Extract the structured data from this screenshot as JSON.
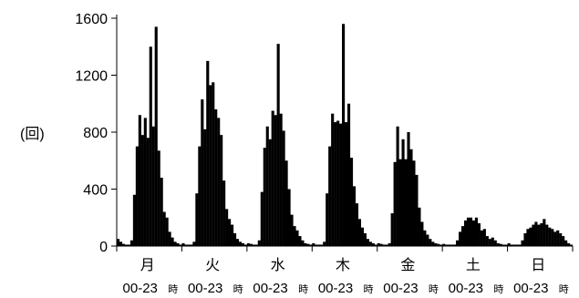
{
  "chart_data": {
    "type": "bar",
    "title": "",
    "xlabel": "",
    "ylabel": "(回)",
    "ylim": [
      0,
      1600
    ],
    "yticks": [
      "0",
      "400",
      "800",
      "1200",
      "1600"
    ],
    "grid": false,
    "legend": "none",
    "bar_color": "#000000",
    "categories": [
      "月",
      "火",
      "水",
      "木",
      "金",
      "土",
      "日"
    ],
    "hour_range_label": "00-23",
    "hour_unit_label": "時",
    "series": [
      {
        "values": [
          [
            50,
            30,
            15,
            10,
            10,
            40,
            360,
            700,
            920,
            780,
            900,
            760,
            1400,
            840,
            1540,
            670,
            480,
            240,
            200,
            100,
            60,
            30,
            20,
            10
          ],
          [
            20,
            10,
            10,
            10,
            30,
            370,
            700,
            1030,
            820,
            1300,
            1130,
            1150,
            960,
            900,
            780,
            460,
            260,
            190,
            150,
            90,
            50,
            30,
            20,
            10
          ],
          [
            20,
            15,
            10,
            10,
            40,
            380,
            690,
            840,
            750,
            950,
            920,
            1420,
            930,
            810,
            600,
            400,
            220,
            140,
            110,
            70,
            40,
            20,
            15,
            10
          ],
          [
            20,
            10,
            10,
            10,
            30,
            370,
            700,
            930,
            870,
            880,
            860,
            1560,
            870,
            1000,
            620,
            420,
            300,
            190,
            130,
            90,
            50,
            30,
            20,
            10
          ],
          [
            20,
            15,
            10,
            10,
            20,
            230,
            590,
            840,
            610,
            750,
            610,
            800,
            680,
            600,
            500,
            270,
            170,
            110,
            80,
            50,
            30,
            20,
            15,
            10
          ],
          [
            15,
            10,
            10,
            10,
            10,
            40,
            100,
            140,
            180,
            200,
            200,
            180,
            200,
            160,
            110,
            120,
            70,
            50,
            60,
            40,
            20,
            15,
            10,
            10
          ],
          [
            20,
            10,
            10,
            10,
            10,
            40,
            90,
            120,
            130,
            150,
            170,
            150,
            160,
            190,
            150,
            130,
            120,
            100,
            110,
            90,
            70,
            40,
            20,
            10
          ]
        ]
      }
    ]
  }
}
